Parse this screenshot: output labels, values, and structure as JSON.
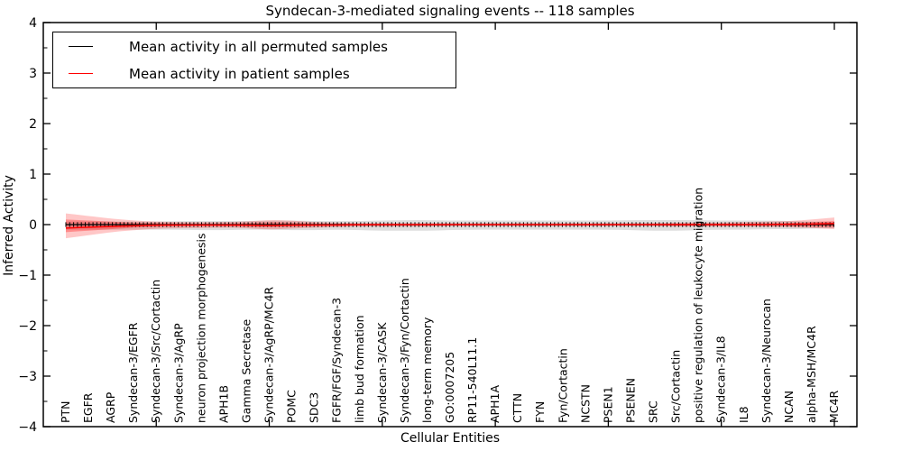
{
  "title": "Syndecan-3-mediated signaling events -- 118 samples",
  "legend": {
    "items": [
      {
        "label": "Mean activity in all permuted samples",
        "color": "#000000"
      },
      {
        "label": "Mean activity in patient samples",
        "color": "#ff0000"
      }
    ],
    "position": "upper left"
  },
  "colors": {
    "permuted_line": "#000000",
    "patient_line": "#ff0000",
    "permuted_band": "rgba(0,0,0,0.13)",
    "patient_band_outer": "rgba(255,0,0,0.22)",
    "patient_band_inner": "rgba(255,0,0,0.30)",
    "axis": "#000000"
  },
  "chart_data": {
    "type": "line",
    "title": "Syndecan-3-mediated signaling events -- 118 samples",
    "xlabel": "Cellular Entities",
    "ylabel": "Inferred Activity",
    "ylim": [
      -4,
      4
    ],
    "yticks": [
      4,
      3,
      2,
      1,
      0,
      -1,
      -2,
      -3,
      -4
    ],
    "ytick_minor_step": 0.5,
    "xticks_major_at_1based": [
      5,
      10,
      15,
      20,
      25,
      30,
      35
    ],
    "grid": false,
    "legend_position": "upper left",
    "categories": [
      "PTN",
      "EGFR",
      "AGRP",
      "Syndecan-3/EGFR",
      "Syndecan-3/Src/Cortactin",
      "Syndecan-3/AgRP",
      "neuron projection morphogenesis",
      "APH1B",
      "Gamma Secretase",
      "Syndecan-3/AgRP/MC4R",
      "POMC",
      "SDC3",
      "FGFR/FGF/Syndecan-3",
      "limb bud formation",
      "Syndecan-3/CASK",
      "Syndecan-3/Fyn/Cortactin",
      "long-term memory",
      "GO:0007205",
      "RP11-540L11.1",
      "APH1A",
      "CTTN",
      "FYN",
      "Fyn/Cortactin",
      "NCSTN",
      "PSEN1",
      "PSENEN",
      "SRC",
      "Src/Cortactin",
      "positive regulation of leukocyte migration",
      "Syndecan-3/IL8",
      "IL8",
      "Syndecan-3/Neurocan",
      "NCAN",
      "alpha-MSH/MC4R",
      "MC4R"
    ],
    "series": [
      {
        "name": "Mean activity in all permuted samples",
        "color": "#000000",
        "marker": "plus",
        "values": [
          0,
          0,
          0,
          0,
          0,
          0,
          0,
          0,
          0,
          0,
          0,
          0,
          0,
          0,
          0,
          0,
          0,
          0,
          0,
          0,
          0,
          0,
          0,
          0,
          0,
          0,
          0,
          0,
          0,
          0,
          0,
          0,
          0,
          0,
          0
        ],
        "band_upper": [
          0.06,
          0.06,
          0.06,
          0.06,
          0.06,
          0.07,
          0.07,
          0.07,
          0.07,
          0.08,
          0.08,
          0.07,
          0.07,
          0.07,
          0.08,
          0.09,
          0.09,
          0.08,
          0.08,
          0.08,
          0.08,
          0.08,
          0.08,
          0.08,
          0.08,
          0.09,
          0.09,
          0.09,
          0.09,
          0.08,
          0.08,
          0.08,
          0.07,
          0.06,
          0.05
        ],
        "band_lower": [
          -0.1,
          -0.1,
          -0.1,
          -0.1,
          -0.1,
          -0.1,
          -0.11,
          -0.11,
          -0.1,
          -0.1,
          -0.11,
          -0.11,
          -0.1,
          -0.11,
          -0.12,
          -0.12,
          -0.12,
          -0.11,
          -0.1,
          -0.1,
          -0.1,
          -0.1,
          -0.1,
          -0.1,
          -0.1,
          -0.11,
          -0.12,
          -0.12,
          -0.11,
          -0.1,
          -0.1,
          -0.09,
          -0.09,
          -0.08,
          -0.07
        ]
      },
      {
        "name": "Mean activity in patient samples",
        "color": "#ff0000",
        "marker": "none",
        "values": [
          -0.07,
          -0.05,
          -0.04,
          -0.02,
          -0.01,
          -0.01,
          -0.01,
          -0.01,
          -0.01,
          -0.02,
          -0.01,
          -0.01,
          -0.01,
          0,
          0,
          0,
          0,
          0,
          0,
          0,
          0,
          0,
          0,
          0,
          0,
          0,
          0,
          0,
          0,
          0,
          0,
          0,
          0.01,
          0.01,
          0.02
        ],
        "band_upper": [
          0.22,
          0.17,
          0.12,
          0.08,
          0.06,
          0.05,
          0.05,
          0.05,
          0.06,
          0.09,
          0.08,
          0.05,
          0.04,
          0.03,
          0.03,
          0.03,
          0.03,
          0.03,
          0.03,
          0.03,
          0.03,
          0.03,
          0.03,
          0.03,
          0.03,
          0.03,
          0.03,
          0.04,
          0.04,
          0.04,
          0.05,
          0.06,
          0.07,
          0.1,
          0.14
        ],
        "band_lower": [
          -0.27,
          -0.21,
          -0.15,
          -0.11,
          -0.08,
          -0.07,
          -0.07,
          -0.06,
          -0.07,
          -0.1,
          -0.08,
          -0.06,
          -0.05,
          -0.04,
          -0.04,
          -0.04,
          -0.04,
          -0.03,
          -0.03,
          -0.03,
          -0.03,
          -0.03,
          -0.03,
          -0.03,
          -0.03,
          -0.03,
          -0.03,
          -0.04,
          -0.04,
          -0.04,
          -0.04,
          -0.05,
          -0.05,
          -0.07,
          -0.09
        ],
        "inner_band_upper": [
          0.1,
          0.08,
          0.06,
          0.04,
          0.03,
          0.02,
          0.02,
          0.02,
          0.03,
          0.05,
          0.04,
          0.02,
          0.02,
          0.01,
          0.01,
          0.01,
          0.01,
          0.01,
          0.01,
          0.01,
          0.01,
          0.01,
          0.01,
          0.01,
          0.01,
          0.01,
          0.01,
          0.02,
          0.02,
          0.02,
          0.02,
          0.03,
          0.03,
          0.05,
          0.07
        ],
        "inner_band_lower": [
          -0.15,
          -0.12,
          -0.09,
          -0.06,
          -0.04,
          -0.03,
          -0.03,
          -0.03,
          -0.04,
          -0.05,
          -0.04,
          -0.03,
          -0.02,
          -0.02,
          -0.02,
          -0.02,
          -0.02,
          -0.01,
          -0.01,
          -0.01,
          -0.01,
          -0.01,
          -0.01,
          -0.01,
          -0.01,
          -0.01,
          -0.01,
          -0.02,
          -0.02,
          -0.02,
          -0.02,
          -0.02,
          -0.03,
          -0.04,
          -0.05
        ]
      }
    ]
  }
}
